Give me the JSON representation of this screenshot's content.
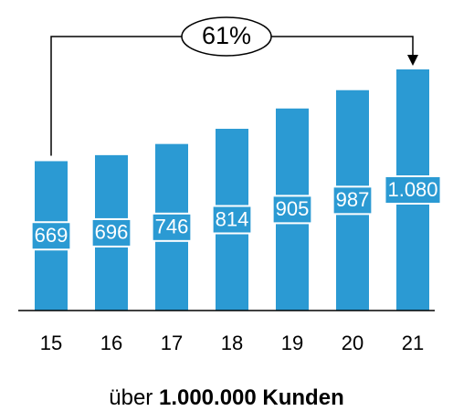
{
  "chart_data": {
    "type": "bar",
    "categories": [
      "15",
      "16",
      "17",
      "18",
      "19",
      "20",
      "21"
    ],
    "values": [
      669,
      696,
      746,
      814,
      905,
      987,
      1080
    ],
    "value_labels": [
      "669",
      "696",
      "746",
      "814",
      "905",
      "987",
      "1.080"
    ],
    "color": "#2b9ad3",
    "annotation": "61%",
    "caption": {
      "prefix": "über",
      "emphasis": "1.000.000 Kunden"
    }
  }
}
